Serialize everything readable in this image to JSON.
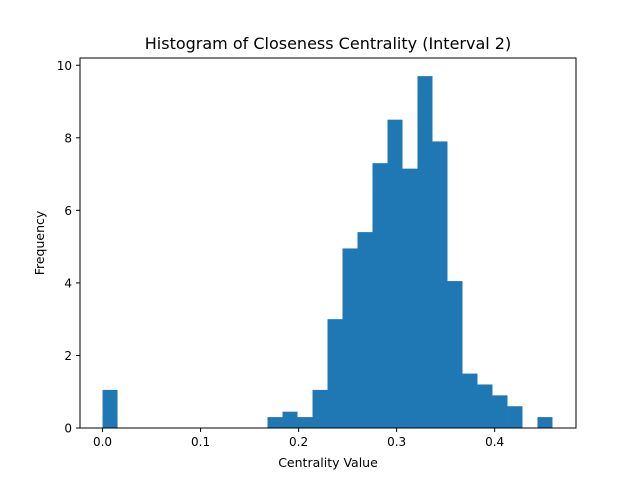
{
  "chart_data": {
    "type": "bar",
    "title": "Histogram of Closeness Centrality (Interval 2)",
    "xlabel": "Centrality Value",
    "ylabel": "Frequency",
    "xlim": [
      -0.023,
      0.483
    ],
    "ylim": [
      0,
      10.2
    ],
    "xticks": [
      0.0,
      0.1,
      0.2,
      0.3,
      0.4
    ],
    "xtick_labels": [
      "0.0",
      "0.1",
      "0.2",
      "0.3",
      "0.4"
    ],
    "yticks": [
      0,
      2,
      4,
      6,
      8,
      10
    ],
    "ytick_labels": [
      "0",
      "2",
      "4",
      "6",
      "8",
      "10"
    ],
    "grid": false,
    "bar_color": "#1f77b4",
    "bin_edges": [
      0.0,
      0.0153,
      0.0306,
      0.0459,
      0.0612,
      0.0765,
      0.0918,
      0.1071,
      0.1224,
      0.1377,
      0.153,
      0.1683,
      0.1836,
      0.1989,
      0.2142,
      0.2295,
      0.2448,
      0.2601,
      0.2754,
      0.2907,
      0.306,
      0.3213,
      0.3366,
      0.3519,
      0.3672,
      0.3825,
      0.3978,
      0.4131,
      0.4284,
      0.4437,
      0.459
    ],
    "values": [
      1.05,
      0,
      0,
      0,
      0,
      0,
      0,
      0,
      0,
      0,
      0,
      0.3,
      0.45,
      0.3,
      1.05,
      3.0,
      4.95,
      5.4,
      7.3,
      8.5,
      7.15,
      9.7,
      7.9,
      4.05,
      1.5,
      1.2,
      0.9,
      0.6,
      0,
      0.3
    ]
  }
}
